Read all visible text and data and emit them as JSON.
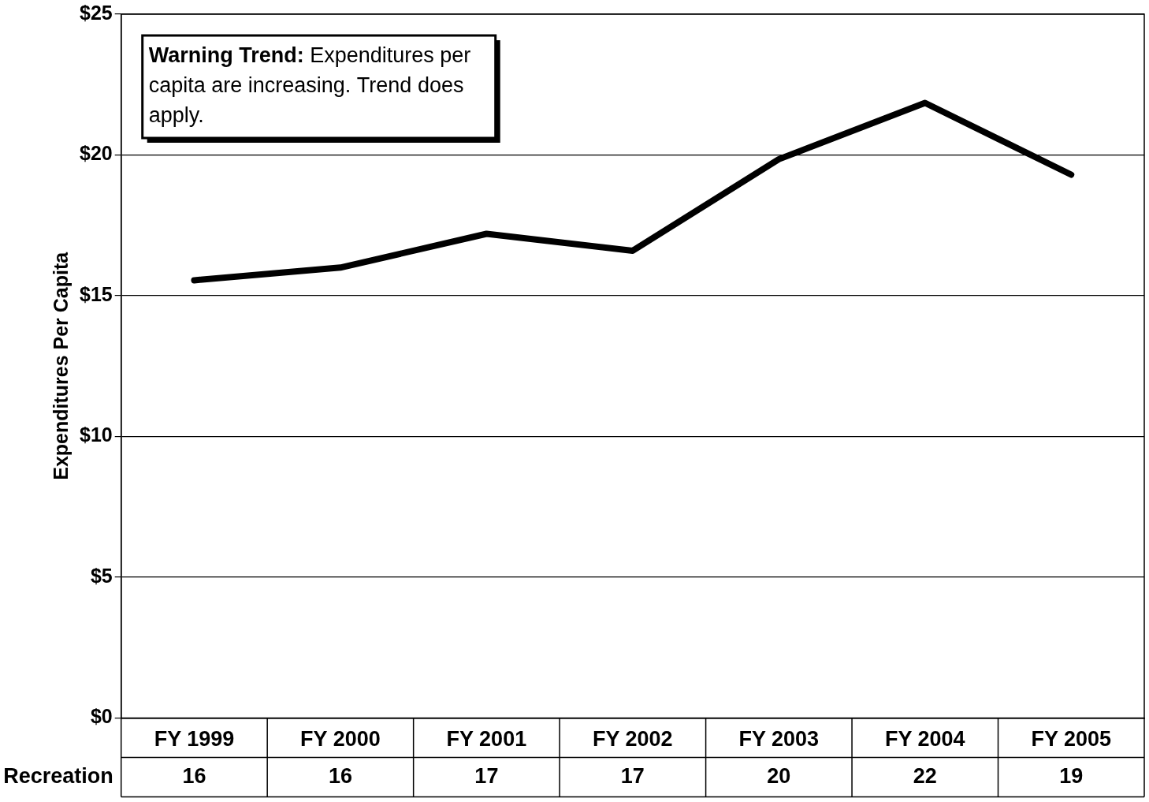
{
  "chart_data": {
    "type": "line",
    "ylabel": "Expenditures Per Capita",
    "categories": [
      "FY 1999",
      "FY 2000",
      "FY 2001",
      "FY 2002",
      "FY 2003",
      "FY 2004",
      "FY 2005"
    ],
    "series": [
      {
        "name": "Recreation",
        "color": "#000000",
        "values": [
          15.55,
          16.0,
          17.2,
          16.6,
          19.85,
          21.85,
          19.3
        ],
        "value_labels": [
          "16",
          "16",
          "17",
          "17",
          "20",
          "22",
          "19"
        ]
      }
    ],
    "ylim": [
      0,
      25
    ],
    "yticks": [
      {
        "value": 0,
        "label": "$0"
      },
      {
        "value": 5,
        "label": "$5"
      },
      {
        "value": 10,
        "label": "$10"
      },
      {
        "value": 15,
        "label": "$15"
      },
      {
        "value": 20,
        "label": "$20"
      },
      {
        "value": 25,
        "label": "$25"
      }
    ],
    "grid": "y",
    "legend": false,
    "marker": "none",
    "line_style": "solid",
    "annotations": [
      "Warning Trend: Expenditures per capita are increasing. Trend does apply."
    ]
  }
}
